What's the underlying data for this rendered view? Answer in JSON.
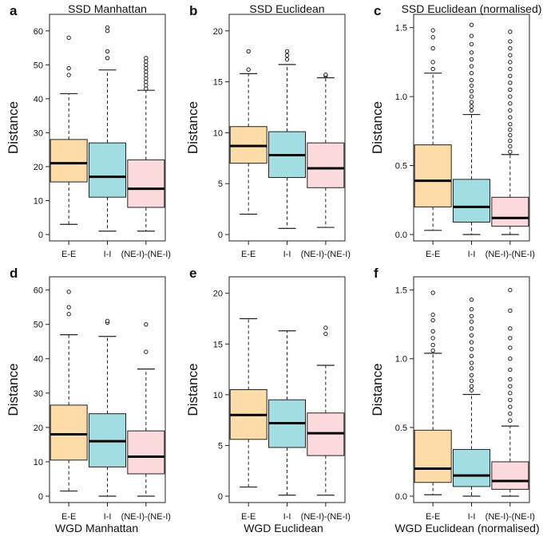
{
  "figure": {
    "bottom_labels": [
      "WGD Manhattan",
      "WGD Euclidean",
      "WGD Euclidean (normalised)"
    ]
  },
  "colors": {
    "E-E": "#fddcaa",
    "I-I": "#a2dde3",
    "(NE-I)-(NE-I)": "#fddadd",
    "stroke": "#222222"
  },
  "chart_data": [
    {
      "type": "box",
      "letter": "a",
      "title": "SSD Manhattan",
      "ylabel": "Distance",
      "ylim": [
        0,
        63
      ],
      "yticks": [
        0,
        10,
        20,
        30,
        40,
        50,
        60
      ],
      "categories": [
        "E-E",
        "I-I",
        "(NE-I)-(NE-I)"
      ],
      "boxes": [
        {
          "q1": 15.5,
          "median": 21,
          "q3": 28,
          "whisker_low": 3,
          "whisker_high": 41.5,
          "outliers": [
            47,
            49,
            58
          ]
        },
        {
          "q1": 11,
          "median": 17,
          "q3": 27,
          "whisker_low": 1,
          "whisker_high": 48.5,
          "outliers": [
            52,
            54,
            60,
            61
          ]
        },
        {
          "q1": 8,
          "median": 13.5,
          "q3": 22,
          "whisker_low": 1,
          "whisker_high": 42.5,
          "outliers": [
            43,
            44,
            45,
            46,
            47,
            48,
            49,
            50,
            51,
            52
          ]
        }
      ]
    },
    {
      "type": "box",
      "letter": "b",
      "title": "SSD Euclidean",
      "ylabel": "Distance",
      "ylim": [
        0,
        21
      ],
      "yticks": [
        0,
        5,
        10,
        15,
        20
      ],
      "categories": [
        "E-E",
        "I-I",
        "(NE-I)-(NE-I)"
      ],
      "boxes": [
        {
          "q1": 7,
          "median": 8.7,
          "q3": 10.6,
          "whisker_low": 2,
          "whisker_high": 15.8,
          "outliers": [
            16.2,
            18
          ]
        },
        {
          "q1": 5.6,
          "median": 7.8,
          "q3": 10.1,
          "whisker_low": 0.6,
          "whisker_high": 16.7,
          "outliers": [
            17.2,
            17.6,
            18
          ]
        },
        {
          "q1": 4.6,
          "median": 6.5,
          "q3": 9,
          "whisker_low": 0.7,
          "whisker_high": 15.4,
          "outliers": [
            15.6,
            15.7
          ]
        }
      ]
    },
    {
      "type": "box",
      "letter": "c",
      "title": "SSD Euclidean (normalised)",
      "ylabel": "Distance",
      "ylim": [
        0,
        1.55
      ],
      "yticks": [
        0.0,
        0.5,
        1.0,
        1.5
      ],
      "categories": [
        "E-E",
        "I-I",
        "(NE-I)-(NE-I)"
      ],
      "boxes": [
        {
          "q1": 0.2,
          "median": 0.39,
          "q3": 0.65,
          "whisker_low": 0.03,
          "whisker_high": 1.17,
          "outliers": [
            1.2,
            1.25,
            1.35,
            1.43,
            1.48
          ]
        },
        {
          "q1": 0.09,
          "median": 0.2,
          "q3": 0.4,
          "whisker_low": 0.0,
          "whisker_high": 0.87,
          "outliers": [
            0.9,
            0.93,
            0.96,
            1.0,
            1.04,
            1.08,
            1.12,
            1.17,
            1.22,
            1.27,
            1.32,
            1.38,
            1.44,
            1.52
          ]
        },
        {
          "q1": 0.06,
          "median": 0.12,
          "q3": 0.27,
          "whisker_low": 0.0,
          "whisker_high": 0.58,
          "outliers": [
            0.6,
            0.64,
            0.68,
            0.72,
            0.76,
            0.8,
            0.85,
            0.9,
            0.95,
            1.0,
            1.05,
            1.1,
            1.15,
            1.2,
            1.25,
            1.3,
            1.35,
            1.4,
            1.47
          ]
        }
      ]
    },
    {
      "type": "box",
      "letter": "d",
      "title": "",
      "ylabel": "Distance",
      "ylim": [
        0,
        62
      ],
      "yticks": [
        0,
        10,
        20,
        30,
        40,
        50,
        60
      ],
      "categories": [
        "E-E",
        "I-I",
        "(NE-I)-(NE-I)"
      ],
      "boxes": [
        {
          "q1": 10.5,
          "median": 18,
          "q3": 26.5,
          "whisker_low": 1.5,
          "whisker_high": 47,
          "outliers": [
            53,
            55,
            59.5
          ]
        },
        {
          "q1": 8.5,
          "median": 16,
          "q3": 24,
          "whisker_low": 0,
          "whisker_high": 46.5,
          "outliers": [
            50.5,
            51
          ]
        },
        {
          "q1": 6.5,
          "median": 11.5,
          "q3": 19,
          "whisker_low": 0,
          "whisker_high": 37,
          "outliers": [
            42,
            50
          ]
        }
      ]
    },
    {
      "type": "box",
      "letter": "e",
      "title": "",
      "ylabel": "Distance",
      "ylim": [
        0,
        21
      ],
      "yticks": [
        0,
        5,
        10,
        15,
        20
      ],
      "categories": [
        "E-E",
        "I-I",
        "(NE-I)-(NE-I)"
      ],
      "boxes": [
        {
          "q1": 5.6,
          "median": 8,
          "q3": 10.5,
          "whisker_low": 0.9,
          "whisker_high": 17.5,
          "outliers": []
        },
        {
          "q1": 4.8,
          "median": 7.2,
          "q3": 9.5,
          "whisker_low": 0.1,
          "whisker_high": 16.3,
          "outliers": []
        },
        {
          "q1": 4,
          "median": 6.2,
          "q3": 8.2,
          "whisker_low": 0.1,
          "whisker_high": 12.9,
          "outliers": [
            16,
            16.6
          ]
        }
      ]
    },
    {
      "type": "box",
      "letter": "f",
      "title": "",
      "ylabel": "Distance",
      "ylim": [
        0,
        1.55
      ],
      "yticks": [
        0.0,
        0.5,
        1.0,
        1.5
      ],
      "categories": [
        "E-E",
        "I-I",
        "(NE-I)-(NE-I)"
      ],
      "boxes": [
        {
          "q1": 0.1,
          "median": 0.2,
          "q3": 0.48,
          "whisker_low": 0.01,
          "whisker_high": 1.04,
          "outliers": [
            1.06,
            1.1,
            1.15,
            1.2,
            1.28,
            1.32,
            1.48
          ]
        },
        {
          "q1": 0.07,
          "median": 0.15,
          "q3": 0.34,
          "whisker_low": 0.0,
          "whisker_high": 0.74,
          "outliers": [
            0.77,
            0.8,
            0.84,
            0.88,
            0.93,
            0.97,
            1.02,
            1.07,
            1.12,
            1.17,
            1.22,
            1.27,
            1.31,
            1.36,
            1.43
          ]
        },
        {
          "q1": 0.05,
          "median": 0.11,
          "q3": 0.25,
          "whisker_low": 0.0,
          "whisker_high": 0.51,
          "outliers": [
            0.55,
            0.6,
            0.65,
            0.7,
            0.75,
            0.8,
            0.85,
            0.92,
            1.0,
            1.08,
            1.15,
            1.22,
            1.35,
            1.5
          ]
        }
      ]
    }
  ]
}
